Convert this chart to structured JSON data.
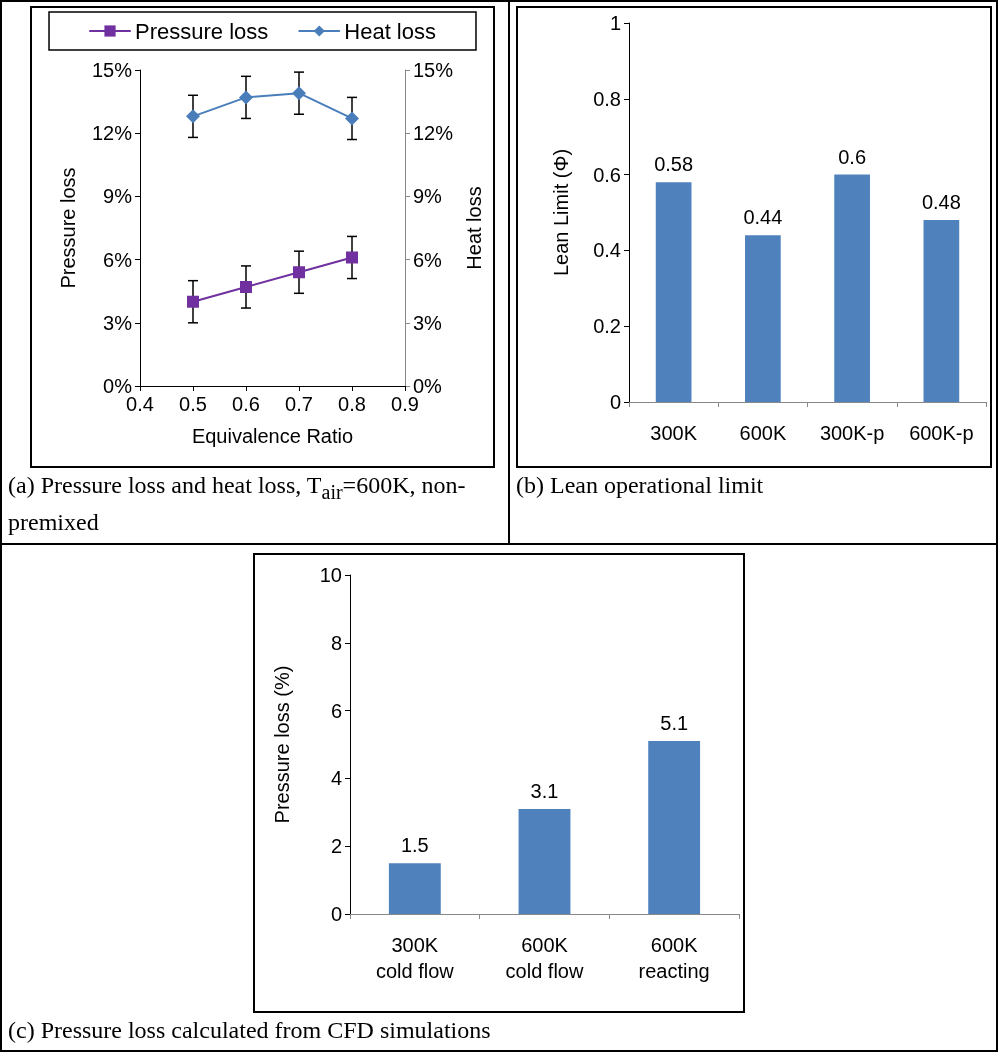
{
  "chart_data": [
    {
      "type": "line",
      "xlabel": "Equivalence Ratio",
      "ylabel": "Pressure loss",
      "y2label": "Heat loss",
      "x": [
        0.5,
        0.6,
        0.7,
        0.8
      ],
      "series": [
        {
          "name": "Pressure loss",
          "color": "#7030a0",
          "marker": "square",
          "values": [
            4.0,
            4.7,
            5.4,
            6.1
          ],
          "errors": [
            1,
            1,
            1,
            1
          ]
        },
        {
          "name": "Heat loss",
          "color": "#4a7ebb",
          "marker": "diamond",
          "axis": "y2",
          "values": [
            12.8,
            13.7,
            13.9,
            12.7
          ],
          "errors": [
            1,
            1,
            1,
            1
          ]
        }
      ],
      "xlim": [
        0.4,
        0.9
      ],
      "xticks": [
        0.4,
        0.5,
        0.6,
        0.7,
        0.8,
        0.9
      ],
      "ylim": [
        0,
        15
      ],
      "yticks": [
        {
          "value": 0,
          "label": "0%"
        },
        {
          "value": 3,
          "label": "3%"
        },
        {
          "value": 6,
          "label": "6%"
        },
        {
          "value": 9,
          "label": "9%"
        },
        {
          "value": 12,
          "label": "12%"
        },
        {
          "value": 15,
          "label": "15%"
        }
      ],
      "y2lim": [
        0,
        15
      ],
      "y2ticks": [
        {
          "value": 0,
          "label": "0%"
        },
        {
          "value": 3,
          "label": "3%"
        },
        {
          "value": 6,
          "label": "6%"
        },
        {
          "value": 9,
          "label": "9%"
        },
        {
          "value": 12,
          "label": "12%"
        },
        {
          "value": 15,
          "label": "15%"
        }
      ],
      "legend": "top",
      "grid": false,
      "line_style": "solid",
      "annotations": [
        "(a) Pressure loss and heat loss, T$_{air}$=600K, non-premixed"
      ]
    },
    {
      "type": "bar",
      "ylabel": "Lean Limit (Φ)",
      "categories": [
        "300K",
        "600K",
        "300K-p",
        "600K-p"
      ],
      "values": [
        0.58,
        0.44,
        0.6,
        0.48
      ],
      "color": "#4f81bd",
      "ylim": [
        0,
        1
      ],
      "yticks": [
        0,
        0.2,
        0.4,
        0.6,
        0.8,
        1
      ],
      "grid": false,
      "data_labels": true,
      "annotations": [
        "(b) Lean operational limit"
      ]
    },
    {
      "type": "bar",
      "ylabel": "Pressure loss (%)",
      "categories": [
        "300K\ncold flow",
        "600K\ncold flow",
        "600K\nreacting"
      ],
      "values": [
        1.5,
        3.1,
        5.1
      ],
      "color": "#4f81bd",
      "ylim": [
        0,
        10
      ],
      "yticks": [
        0,
        2,
        4,
        6,
        8,
        10
      ],
      "grid": false,
      "data_labels": true,
      "annotations": [
        "(c) Pressure loss calculated from CFD simulations"
      ]
    }
  ]
}
